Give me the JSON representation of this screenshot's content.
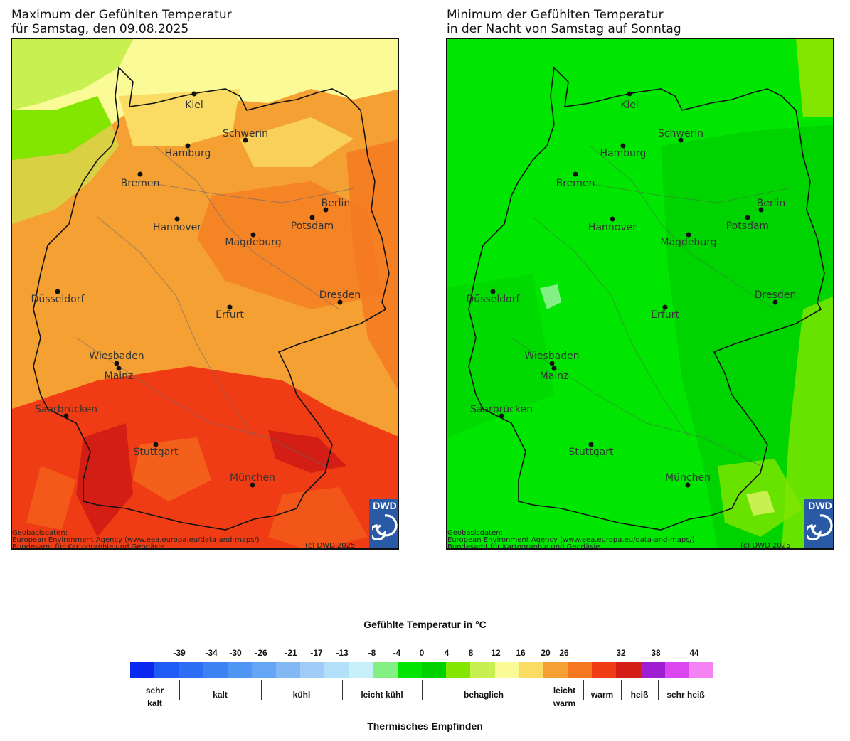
{
  "panels": [
    {
      "title_line1": "Maximum der Gefühlten Temperatur",
      "title_line2": "für Samstag, den 09.08.2025"
    },
    {
      "title_line1": "Minimum der Gefühlten Temperatur",
      "title_line2": "in der Nacht von Samstag auf Sonntag"
    }
  ],
  "cities": [
    {
      "name": "Kiel"
    },
    {
      "name": "Schwerin"
    },
    {
      "name": "Hamburg"
    },
    {
      "name": "Bremen"
    },
    {
      "name": "Berlin"
    },
    {
      "name": "Potsdam"
    },
    {
      "name": "Hannover"
    },
    {
      "name": "Magdeburg"
    },
    {
      "name": "Düsseldorf"
    },
    {
      "name": "Dresden"
    },
    {
      "name": "Erfurt"
    },
    {
      "name": "Wiesbaden"
    },
    {
      "name": "Mainz"
    },
    {
      "name": "Saarbrücken"
    },
    {
      "name": "Stuttgart"
    },
    {
      "name": "München"
    }
  ],
  "credits": {
    "line1": "Geobasisdaten:",
    "line2": "European Environment Agency (www.eea.europa.eu/data-and-maps/)",
    "line3": "Bundesamt für Kartographie und Geodäsie",
    "copyright": "(c) DWD 2025",
    "logo_text": "DWD"
  },
  "legend": {
    "title": "Gefühlte Temperatur in °C",
    "footer": "Thermisches Empfinden",
    "ticks": [
      "-39",
      "-34",
      "-30",
      "-26",
      "-21",
      "-17",
      "-13",
      "-8",
      "-4",
      "0",
      "4",
      "8",
      "12",
      "16",
      "20",
      "26",
      "32",
      "38",
      "44"
    ],
    "colors": [
      "#0a28f0",
      "#1e5af5",
      "#2d6ef5",
      "#3c82f5",
      "#5096f5",
      "#64a5f5",
      "#82b9f5",
      "#a0cdf8",
      "#b4e1fa",
      "#c8f0fa",
      "#82f082",
      "#00e600",
      "#00d200",
      "#82e600",
      "#c8f050",
      "#fafa96",
      "#fadc64",
      "#f5a032",
      "#f57820",
      "#f03c14",
      "#d21e14",
      "#a01ed2",
      "#dc46f0",
      "#f582f5"
    ],
    "categories": [
      {
        "label": "sehr\nkalt"
      },
      {
        "label": "kalt"
      },
      {
        "label": "kühl"
      },
      {
        "label": "leicht kühl"
      },
      {
        "label": "behaglich"
      },
      {
        "label": "leicht\nwarm"
      },
      {
        "label": "warm"
      },
      {
        "label": "heiß"
      },
      {
        "label": "sehr heiß"
      }
    ]
  }
}
